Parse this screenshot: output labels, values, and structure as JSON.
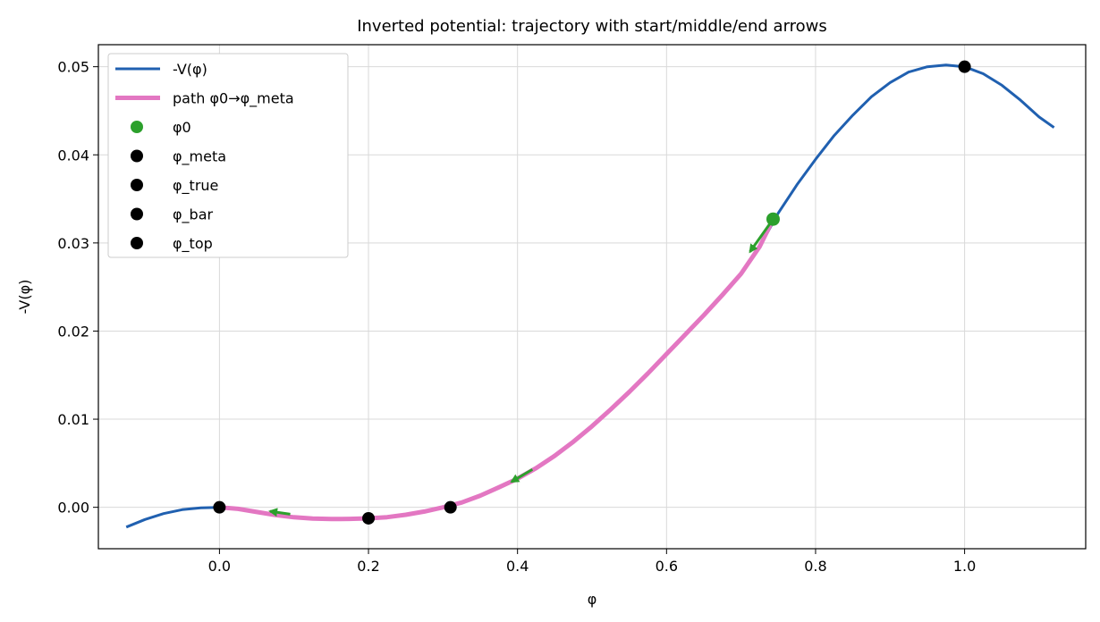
{
  "chart_data": {
    "type": "line",
    "title": "Inverted potential: trajectory with start/middle/end arrows",
    "xlabel": "φ",
    "ylabel": "-V(φ)",
    "xlim": [
      -0.1625,
      1.1625
    ],
    "ylim": [
      -0.0047,
      0.0525
    ],
    "xticks": [
      0.0,
      0.2,
      0.4,
      0.6,
      0.8,
      1.0
    ],
    "xtick_labels": [
      "0.0",
      "0.2",
      "0.4",
      "0.6",
      "0.8",
      "1.0"
    ],
    "yticks": [
      0.0,
      0.01,
      0.02,
      0.03,
      0.04,
      0.05
    ],
    "ytick_labels": [
      "0.00",
      "0.01",
      "0.02",
      "0.03",
      "0.04",
      "0.05"
    ],
    "grid": true,
    "legend_position": "top-left",
    "colors": {
      "potential": "#2060b0",
      "path": "#e377c2",
      "start": "#2ca02c",
      "points": "#000000",
      "arrows": "#2ca02c",
      "grid": "#d9d9d9"
    },
    "series": [
      {
        "name": "-V(φ)",
        "kind": "line",
        "x": [
          -0.125,
          -0.1,
          -0.075,
          -0.05,
          -0.025,
          0.0,
          0.025,
          0.05,
          0.075,
          0.1,
          0.125,
          0.15,
          0.175,
          0.2,
          0.225,
          0.25,
          0.275,
          0.3,
          0.325,
          0.35,
          0.375,
          0.4,
          0.425,
          0.45,
          0.475,
          0.5,
          0.525,
          0.55,
          0.575,
          0.6,
          0.625,
          0.65,
          0.675,
          0.7,
          0.725,
          0.75,
          0.775,
          0.8,
          0.825,
          0.85,
          0.875,
          0.9,
          0.925,
          0.95,
          0.975,
          1.0,
          1.025,
          1.05,
          1.075,
          1.1,
          1.12
        ],
        "y": [
          -0.00225,
          -0.00138,
          -0.00071,
          -0.00027,
          -5e-05,
          0.0,
          -0.00018,
          -0.00053,
          -0.00088,
          -0.00113,
          -0.00127,
          -0.00133,
          -0.00131,
          -0.00125,
          -0.00112,
          -0.00085,
          -0.00048,
          0.0,
          0.00054,
          0.00132,
          0.00227,
          0.00325,
          0.00445,
          0.00585,
          0.00745,
          0.0092,
          0.0111,
          0.0131,
          0.0152,
          0.0174,
          0.0196,
          0.0218,
          0.0241,
          0.0265,
          0.0296,
          0.0334,
          0.0366,
          0.0395,
          0.0422,
          0.0445,
          0.0466,
          0.0482,
          0.0494,
          0.05,
          0.0502,
          0.05,
          0.0492,
          0.0479,
          0.0462,
          0.0443,
          0.0431
        ]
      },
      {
        "name": "path φ0→φ_meta",
        "kind": "line",
        "x": [
          0.0,
          0.025,
          0.05,
          0.075,
          0.1,
          0.125,
          0.15,
          0.175,
          0.2,
          0.225,
          0.25,
          0.275,
          0.3,
          0.325,
          0.35,
          0.375,
          0.4,
          0.425,
          0.45,
          0.475,
          0.5,
          0.525,
          0.55,
          0.575,
          0.6,
          0.625,
          0.65,
          0.675,
          0.7,
          0.725,
          0.743
        ],
        "y": [
          0.0,
          -0.00018,
          -0.00053,
          -0.00088,
          -0.00113,
          -0.00127,
          -0.00133,
          -0.00131,
          -0.00125,
          -0.00112,
          -0.00085,
          -0.00048,
          0.0,
          0.00054,
          0.00132,
          0.00227,
          0.00325,
          0.00445,
          0.00585,
          0.00745,
          0.0092,
          0.0111,
          0.0131,
          0.0152,
          0.0174,
          0.0196,
          0.0218,
          0.0241,
          0.0265,
          0.0296,
          0.0327
        ]
      },
      {
        "name": "φ0",
        "kind": "marker",
        "x": [
          0.743
        ],
        "y": [
          0.0327
        ]
      },
      {
        "name": "φ_meta",
        "kind": "marker",
        "x": [
          0.0
        ],
        "y": [
          0.0
        ]
      },
      {
        "name": "φ_true",
        "kind": "marker",
        "x": [
          1.0
        ],
        "y": [
          0.05
        ]
      },
      {
        "name": "φ_bar",
        "kind": "marker",
        "x": [
          0.31
        ],
        "y": [
          0.0
        ]
      },
      {
        "name": "φ_top",
        "kind": "marker",
        "x": [
          0.2
        ],
        "y": [
          -0.00125
        ]
      }
    ],
    "arrows": [
      {
        "from": [
          0.743,
          0.0327
        ],
        "to": [
          0.712,
          0.029
        ]
      },
      {
        "from": [
          0.42,
          0.0043
        ],
        "to": [
          0.392,
          0.0029
        ]
      },
      {
        "from": [
          0.095,
          -0.00078
        ],
        "to": [
          0.068,
          -0.00045
        ]
      }
    ]
  }
}
